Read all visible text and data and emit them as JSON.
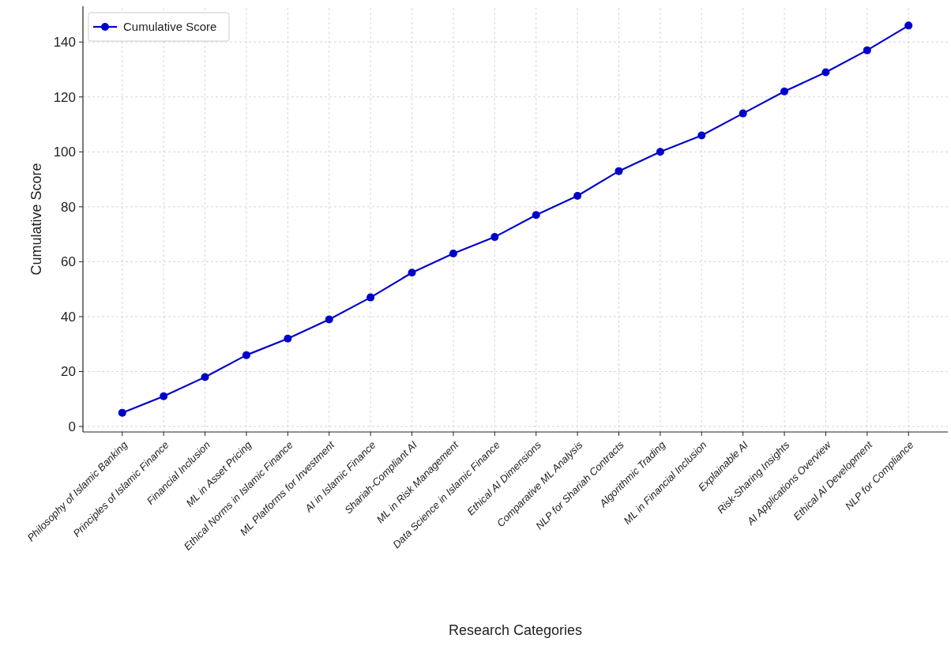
{
  "chart_data": {
    "type": "line",
    "xlabel": "Research Categories",
    "ylabel": "Cumulative Score",
    "categories": [
      "Philosophy of Islamic Banking",
      "Principles of Islamic Finance",
      "Financial Inclusion",
      "ML in Asset Pricing",
      "Ethical Norms in Islamic Finance",
      "ML Platforms for Investment",
      "AI in Islamic Finance",
      "Shariah-Compliant AI",
      "ML in Risk Management",
      "Data Science in Islamic Finance",
      "Ethical AI Dimensions",
      "Comparative ML Analysis",
      "NLP for Shariah Contracts",
      "Algorithmic Trading",
      "ML in Financial Inclusion",
      "Explainable AI",
      "Risk-Sharing Insights",
      "AI Applications Overview",
      "Ethical AI Development",
      "NLP for Compliance"
    ],
    "series": [
      {
        "name": "Cumulative Score",
        "color": "#0000cc",
        "values": [
          5,
          11,
          18,
          26,
          32,
          39,
          47,
          56,
          63,
          69,
          77,
          84,
          93,
          100,
          106,
          114,
          122,
          129,
          137,
          146
        ]
      }
    ],
    "ylim": [
      -2,
      153
    ],
    "yticks": [
      0,
      20,
      40,
      60,
      80,
      100,
      120,
      140
    ],
    "grid": true,
    "legend": "top left",
    "marker": "circle",
    "line_style": "solid"
  }
}
